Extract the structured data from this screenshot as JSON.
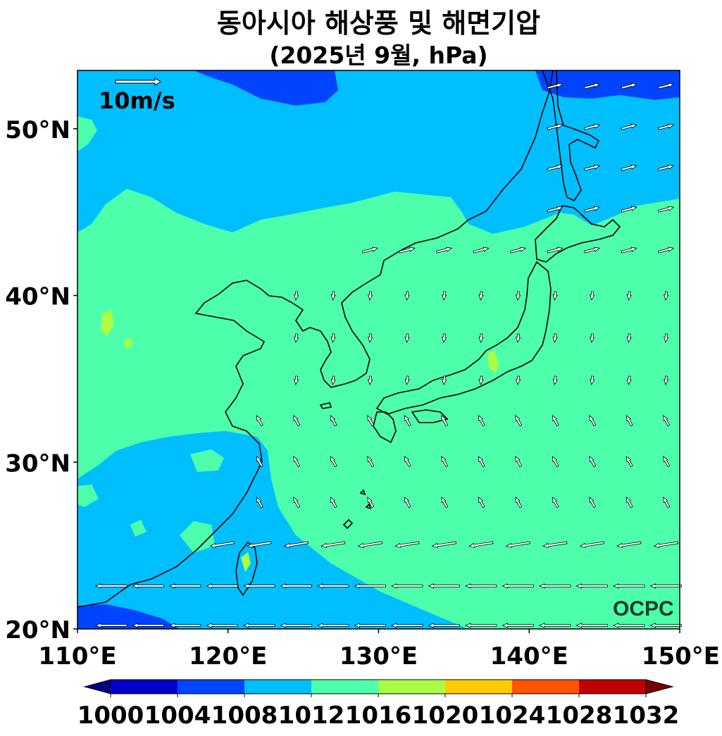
{
  "title": "동아시아 해상풍 및 해면기압",
  "subtitle": "(2025년 9월, hPa)",
  "reference_vector_label": "10m/s",
  "watermark": "OCPC",
  "map_extent": {
    "lon": [
      110,
      150
    ],
    "lat": [
      20,
      53.5
    ]
  },
  "lat_ticks": [
    {
      "lat": 50,
      "label": "50°N"
    },
    {
      "lat": 40,
      "label": "40°N"
    },
    {
      "lat": 30,
      "label": "30°N"
    },
    {
      "lat": 20,
      "label": "20°N"
    }
  ],
  "lon_ticks": [
    {
      "lon": 110,
      "label": "110°E"
    },
    {
      "lon": 120,
      "label": "120°E"
    },
    {
      "lon": 130,
      "label": "130°E"
    },
    {
      "lon": 140,
      "label": "140°E"
    },
    {
      "lon": 150,
      "label": "150°E"
    }
  ],
  "colorbar": {
    "levels": [
      1000,
      1004,
      1008,
      1012,
      1016,
      1020,
      1024,
      1028,
      1032
    ],
    "labels": [
      "1000",
      "1004",
      "1008",
      "1012",
      "1016",
      "1020",
      "1024",
      "1028",
      "1032"
    ],
    "under_color": "#000080",
    "over_color": "#7a0000",
    "colors": [
      "#0000cc",
      "#0044ff",
      "#00bfff",
      "#4dffaa",
      "#aaff44",
      "#ffcc00",
      "#ff5500",
      "#c00000"
    ]
  }
}
